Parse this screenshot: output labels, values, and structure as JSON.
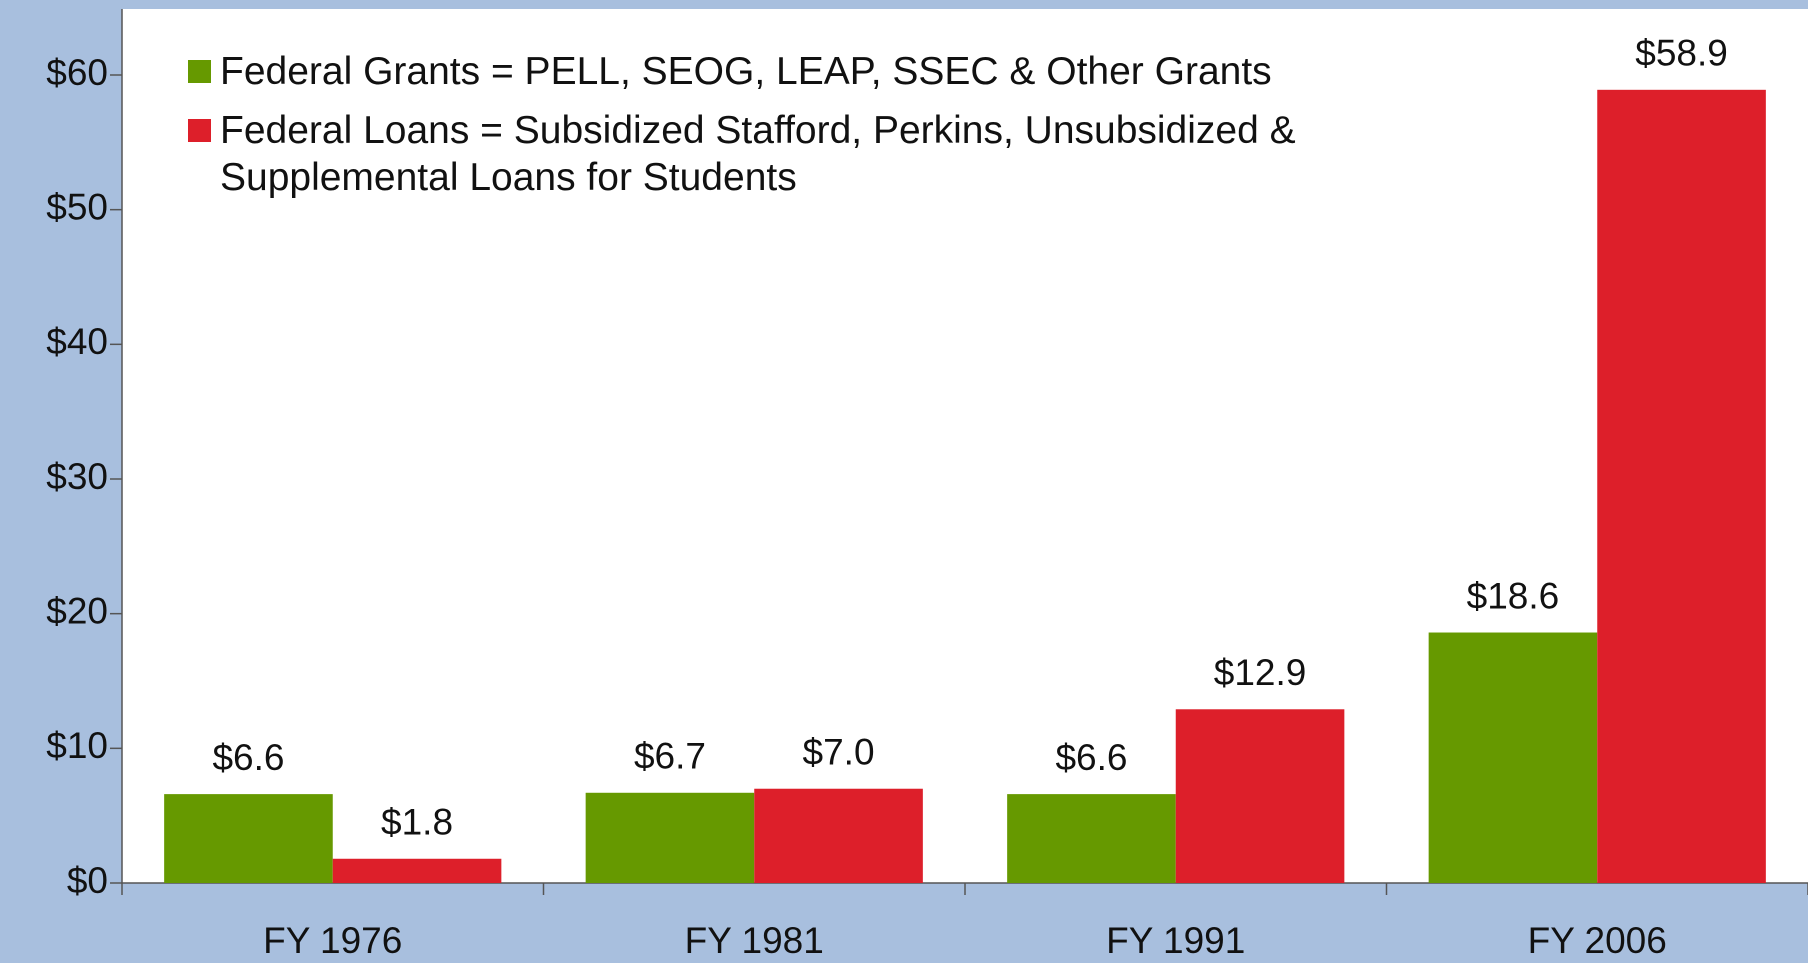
{
  "chart_data": {
    "type": "bar",
    "categories": [
      "FY 1976",
      "FY 1981",
      "FY 1991",
      "FY 2006"
    ],
    "series": [
      {
        "name": "Federal Grants = PELL, SEOG, LEAP, SSEC & Other Grants",
        "color": "#669900",
        "values": [
          6.6,
          6.7,
          6.6,
          18.6
        ],
        "value_labels": [
          "$6.6",
          "$6.7",
          "$6.6",
          "$18.6"
        ]
      },
      {
        "name": "Federal Loans = Subsidized Stafford, Perkins, Unsubsidized & Supplemental Loans for Students",
        "color": "#dd1f2a",
        "values": [
          1.8,
          7.0,
          12.9,
          58.9
        ],
        "value_labels": [
          "$1.8",
          "$7.0",
          "$12.9",
          "$58.9"
        ]
      }
    ],
    "ylim": [
      0,
      60
    ],
    "yticks": [
      {
        "value": 0,
        "label": "$0"
      },
      {
        "value": 10,
        "label": "$10"
      },
      {
        "value": 20,
        "label": "$20"
      },
      {
        "value": 30,
        "label": "$30"
      },
      {
        "value": 40,
        "label": "$40"
      },
      {
        "value": 50,
        "label": "$50"
      },
      {
        "value": 60,
        "label": "$60"
      }
    ],
    "legend": "top-left"
  }
}
